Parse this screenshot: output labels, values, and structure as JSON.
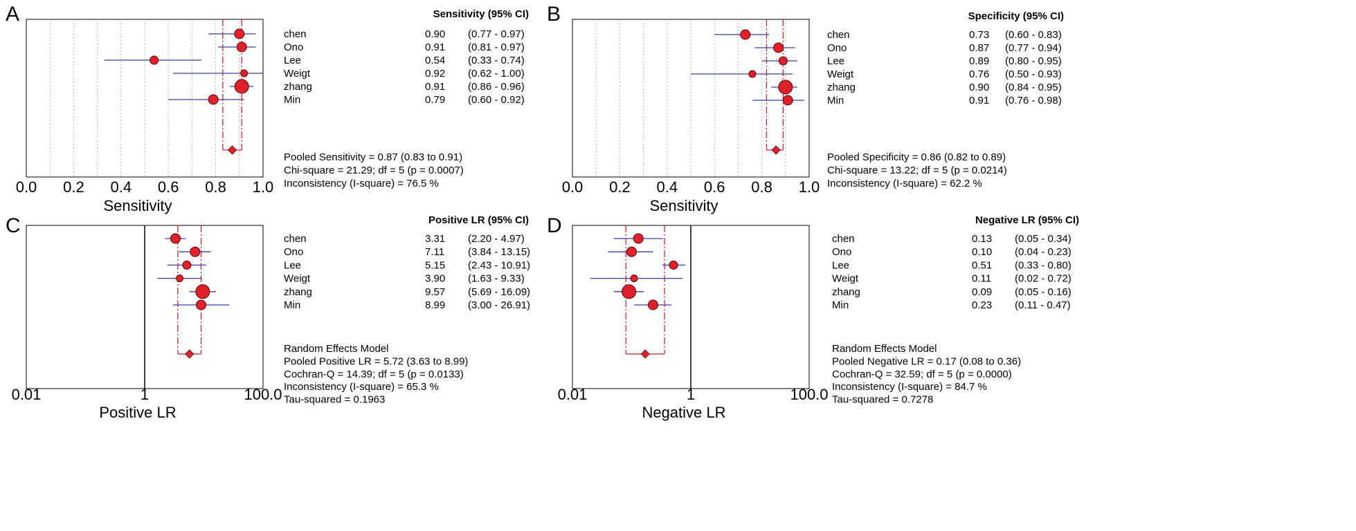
{
  "chart_data": [
    {
      "type": "forest",
      "panel_label": "A",
      "header": "Sensitivity (95% CI)",
      "xlabel": "Sensitivity",
      "xlim": [
        0,
        1
      ],
      "scale": "linear",
      "tick_labels": [
        "0.0",
        "0.2",
        "0.4",
        "0.6",
        "0.8",
        "1.0"
      ],
      "tick_values": [
        0,
        0.2,
        0.4,
        0.6,
        0.8,
        1.0
      ],
      "grid": "vertical dotted every 0.1",
      "studies": [
        {
          "name": "chen",
          "est": 0.9,
          "lo": 0.77,
          "hi": 0.97,
          "est_text": "0.90",
          "ci_text": "(0.77 - 0.97)"
        },
        {
          "name": "Ono",
          "est": 0.91,
          "lo": 0.81,
          "hi": 0.97,
          "est_text": "0.91",
          "ci_text": "(0.81 - 0.97)"
        },
        {
          "name": "Lee",
          "est": 0.54,
          "lo": 0.33,
          "hi": 0.74,
          "est_text": "0.54",
          "ci_text": "(0.33 - 0.74)"
        },
        {
          "name": "Weigt",
          "est": 0.92,
          "lo": 0.62,
          "hi": 1.0,
          "est_text": "0.92",
          "ci_text": "(0.62 - 1.00)"
        },
        {
          "name": "zhang",
          "est": 0.91,
          "lo": 0.86,
          "hi": 0.96,
          "est_text": "0.91",
          "ci_text": "(0.86 - 0.96)"
        },
        {
          "name": "Min",
          "est": 0.79,
          "lo": 0.6,
          "hi": 0.92,
          "est_text": "0.79",
          "ci_text": "(0.60 - 0.92)"
        }
      ],
      "pooled": {
        "est": 0.87,
        "lo": 0.83,
        "hi": 0.91
      },
      "summary_lines": [
        "Pooled Sensitivity = 0.87 (0.83 to 0.91)",
        "Chi-square = 21.29; df =  5 (p = 0.0007)",
        "Inconsistency (I-square) = 76.5 %"
      ]
    },
    {
      "type": "forest",
      "panel_label": "B",
      "header": "Specificity (95% CI)",
      "xlabel": "Sensitivity",
      "xlim": [
        0,
        1
      ],
      "scale": "linear",
      "tick_labels": [
        "0.0",
        "0.2",
        "0.4",
        "0.6",
        "0.8",
        "1.0"
      ],
      "tick_values": [
        0,
        0.2,
        0.4,
        0.6,
        0.8,
        1.0
      ],
      "grid": "vertical dotted every 0.1",
      "studies": [
        {
          "name": "chen",
          "est": 0.73,
          "lo": 0.6,
          "hi": 0.83,
          "est_text": "0.73",
          "ci_text": "(0.60 - 0.83)"
        },
        {
          "name": "Ono",
          "est": 0.87,
          "lo": 0.77,
          "hi": 0.94,
          "est_text": "0.87",
          "ci_text": "(0.77 - 0.94)"
        },
        {
          "name": "Lee",
          "est": 0.89,
          "lo": 0.8,
          "hi": 0.95,
          "est_text": "0.89",
          "ci_text": "(0.80 - 0.95)"
        },
        {
          "name": "Weigt",
          "est": 0.76,
          "lo": 0.5,
          "hi": 0.93,
          "est_text": "0.76",
          "ci_text": "(0.50 - 0.93)"
        },
        {
          "name": "zhang",
          "est": 0.9,
          "lo": 0.84,
          "hi": 0.95,
          "est_text": "0.90",
          "ci_text": "(0.84 - 0.95)"
        },
        {
          "name": "Min",
          "est": 0.91,
          "lo": 0.76,
          "hi": 0.98,
          "est_text": "0.91",
          "ci_text": "(0.76 - 0.98)"
        }
      ],
      "pooled": {
        "est": 0.86,
        "lo": 0.82,
        "hi": 0.89
      },
      "summary_lines": [
        "Pooled Specificity = 0.86 (0.82 to 0.89)",
        "Chi-square = 13.22; df =  5 (p = 0.0214)",
        "Inconsistency (I-square) = 62.2 %"
      ]
    },
    {
      "type": "forest",
      "panel_label": "C",
      "header": "Positive LR (95% CI)",
      "xlabel": "Positive LR",
      "xlim": [
        0.01,
        100
      ],
      "scale": "log",
      "tick_labels": [
        "0.01",
        "1",
        "100.0"
      ],
      "tick_values": [
        0.01,
        1,
        100
      ],
      "reference_line": 1,
      "studies": [
        {
          "name": "chen",
          "est": 3.31,
          "lo": 2.2,
          "hi": 4.97,
          "est_text": "3.31",
          "ci_text": "(2.20 - 4.97)"
        },
        {
          "name": "Ono",
          "est": 7.11,
          "lo": 3.84,
          "hi": 13.15,
          "est_text": "7.11",
          "ci_text": "(3.84 - 13.15)"
        },
        {
          "name": "Lee",
          "est": 5.15,
          "lo": 2.43,
          "hi": 10.91,
          "est_text": "5.15",
          "ci_text": "(2.43 - 10.91)"
        },
        {
          "name": "Weigt",
          "est": 3.9,
          "lo": 1.63,
          "hi": 9.33,
          "est_text": "3.90",
          "ci_text": "(1.63 - 9.33)"
        },
        {
          "name": "zhang",
          "est": 9.57,
          "lo": 5.69,
          "hi": 16.09,
          "est_text": "9.57",
          "ci_text": "(5.69 - 16.09)"
        },
        {
          "name": "Min",
          "est": 8.99,
          "lo": 3.0,
          "hi": 26.91,
          "est_text": "8.99",
          "ci_text": "(3.00 - 26.91)"
        }
      ],
      "pooled": {
        "est": 5.72,
        "lo": 3.63,
        "hi": 8.99
      },
      "summary_lines": [
        "Random Effects Model",
        "Pooled Positive LR = 5.72 (3.63 to 8.99)",
        "Cochran-Q = 14.39; df =  5 (p = 0.0133)",
        "Inconsistency (I-square) = 65.3 %",
        "Tau-squared = 0.1963"
      ]
    },
    {
      "type": "forest",
      "panel_label": "D",
      "header": "Negative LR (95% CI)",
      "xlabel": "Negative LR",
      "xlim": [
        0.01,
        100
      ],
      "scale": "log",
      "tick_labels": [
        "0.01",
        "1",
        "100.0"
      ],
      "tick_values": [
        0.01,
        1,
        100
      ],
      "reference_line": 1,
      "studies": [
        {
          "name": "chen",
          "est": 0.13,
          "lo": 0.05,
          "hi": 0.34,
          "est_text": "0.13",
          "ci_text": "(0.05 - 0.34)"
        },
        {
          "name": "Ono",
          "est": 0.1,
          "lo": 0.04,
          "hi": 0.23,
          "est_text": "0.10",
          "ci_text": "(0.04 - 0.23)"
        },
        {
          "name": "Lee",
          "est": 0.51,
          "lo": 0.33,
          "hi": 0.8,
          "est_text": "0.51",
          "ci_text": "(0.33 - 0.80)"
        },
        {
          "name": "Weigt",
          "est": 0.11,
          "lo": 0.02,
          "hi": 0.72,
          "est_text": "0.11",
          "ci_text": "(0.02 - 0.72)"
        },
        {
          "name": "zhang",
          "est": 0.09,
          "lo": 0.05,
          "hi": 0.16,
          "est_text": "0.09",
          "ci_text": "(0.05 - 0.16)"
        },
        {
          "name": "Min",
          "est": 0.23,
          "lo": 0.11,
          "hi": 0.47,
          "est_text": "0.23",
          "ci_text": "(0.11 - 0.47)"
        }
      ],
      "pooled": {
        "est": 0.17,
        "lo": 0.08,
        "hi": 0.36
      },
      "summary_lines": [
        "Random Effects Model",
        "Pooled Negative LR = 0.17 (0.08 to 0.36)",
        "Cochran-Q = 32.59; df =  5 (p = 0.0000)",
        "Inconsistency (I-square) = 84.7 %",
        "Tau-squared = 0.7278"
      ]
    }
  ],
  "colors": {
    "ci_line": "#3a3aa8",
    "point_fill": "#e0202a",
    "point_stroke": "#5a0000",
    "pooled_line": "#cc2233",
    "grid": "#b0b0b0",
    "frame": "#000000"
  }
}
